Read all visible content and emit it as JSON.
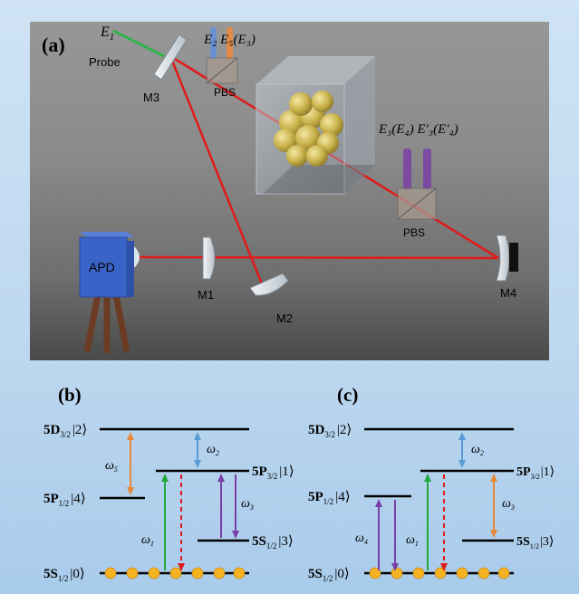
{
  "panel_a": {
    "label": "(a)",
    "probe_field": "E",
    "probe_field_sub": "1",
    "probe_label": "Probe",
    "fields_top": "E₂ E₅(E₃)",
    "fields_right": "E₃(E₄) E′₃(E′₄)",
    "pbs1": "PBS",
    "pbs2": "PBS",
    "m1": "M1",
    "m2": "M2",
    "m3": "M3",
    "m4": "M4",
    "apd": "APD"
  },
  "panel_b": {
    "label": "(b)",
    "levels": {
      "d32": "5D",
      "d32_sub": "3/2",
      "d32_ket": "|2⟩",
      "p32": "5P",
      "p32_sub": "3/2",
      "p32_ket": "|1⟩",
      "p12": "5P",
      "p12_sub": "1/2",
      "p12_ket": "|4⟩",
      "s12u": "5S",
      "s12u_sub": "1/2",
      "s12u_ket": "|3⟩",
      "s12g": "5S",
      "s12g_sub": "1/2",
      "s12g_ket": "|0⟩"
    },
    "omegas": {
      "w1": "ω",
      "w1_sub": "1",
      "w2": "ω",
      "w2_sub": "2",
      "w3": "ω",
      "w3_sub": "3",
      "w5": "ω",
      "w5_sub": "5"
    }
  },
  "panel_c": {
    "label": "(c)",
    "levels": {
      "d32": "5D",
      "d32_sub": "3/2",
      "d32_ket": "|2⟩",
      "p32": "5P",
      "p32_sub": "3/2",
      "p32_ket": "|1⟩",
      "p12": "5P",
      "p12_sub": "1/2",
      "p12_ket": "|4⟩",
      "s12u": "5S",
      "s12u_sub": "1/2",
      "s12u_ket": "|3⟩",
      "s12g": "5S",
      "s12g_sub": "1/2",
      "s12g_ket": "|0⟩"
    },
    "omegas": {
      "w1": "ω",
      "w1_sub": "1",
      "w2": "ω",
      "w2_sub": "2",
      "w3": "ω",
      "w3_sub": "3",
      "w4": "ω",
      "w4_sub": "4"
    }
  },
  "colors": {
    "laser": "#e01b1b",
    "probe_beam": "#2fb34a",
    "apd_blue": "#3a63c8",
    "sphere": "#c7b44e",
    "orange": "#e8883a",
    "blue": "#5b9bd5",
    "purple": "#7a3fa6",
    "green": "#1faa3a",
    "red_dashed": "#e01b1b",
    "atom": "#f5b321"
  }
}
